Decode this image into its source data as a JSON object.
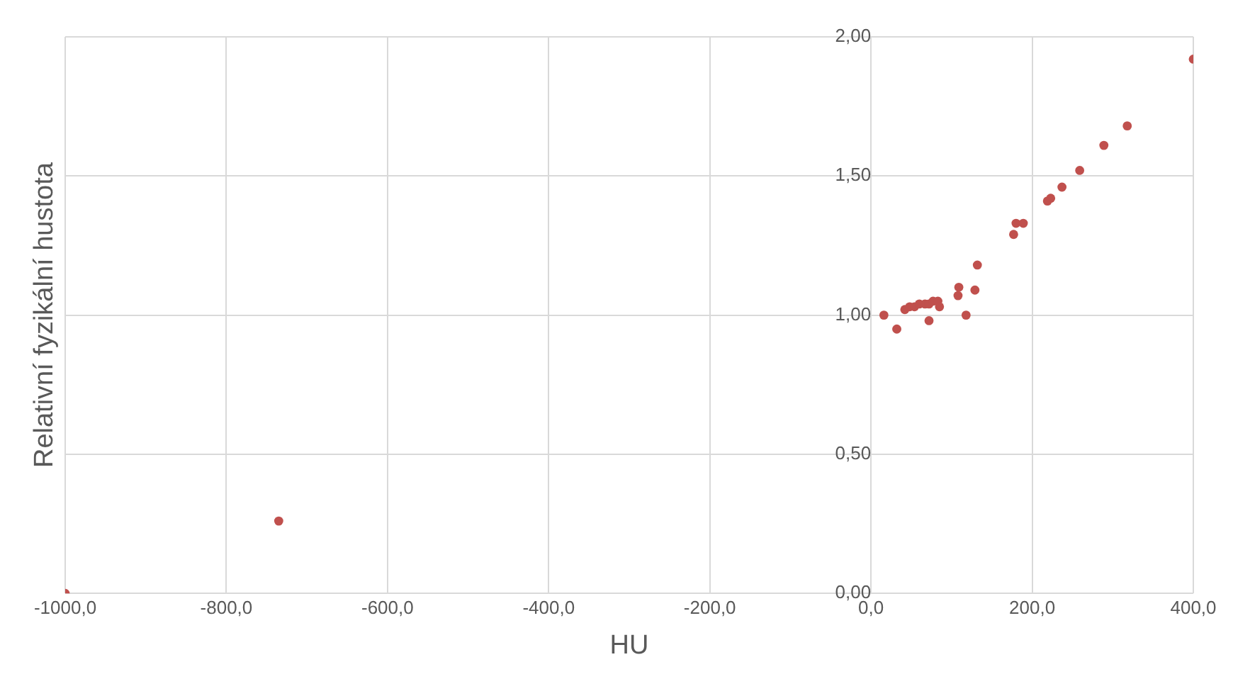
{
  "chart_data": {
    "type": "scatter",
    "xlabel": "HU",
    "ylabel": "Relativní fyzikální hustota",
    "x": [
      -1000,
      -735,
      16,
      32,
      42,
      48,
      54,
      60,
      67,
      72,
      72,
      77,
      83,
      85,
      108,
      109,
      118,
      129,
      132,
      177,
      180,
      189,
      219,
      223,
      237,
      259,
      289,
      318,
      400
    ],
    "series": [
      {
        "color": "#c0504d",
        "values": [
          0,
          0.26,
          1.0,
          0.95,
          1.02,
          1.03,
          1.03,
          1.04,
          1.04,
          0.98,
          1.04,
          1.05,
          1.05,
          1.03,
          1.07,
          1.1,
          1.0,
          1.09,
          1.18,
          1.29,
          1.33,
          1.33,
          1.41,
          1.42,
          1.46,
          1.52,
          1.61,
          1.68,
          1.92
        ]
      }
    ],
    "xlim": [
      -1000,
      400
    ],
    "xticks": [
      {
        "value": -1000,
        "label": "-1000,0"
      },
      {
        "value": -800,
        "label": "-800,0"
      },
      {
        "value": -600,
        "label": "-600,0"
      },
      {
        "value": -400,
        "label": "-400,0"
      },
      {
        "value": -200,
        "label": "-200,0"
      },
      {
        "value": 0,
        "label": "0,0"
      },
      {
        "value": 200,
        "label": "200,0"
      },
      {
        "value": 400,
        "label": "400,0"
      }
    ],
    "ylim": [
      0,
      2
    ],
    "yticks": [
      {
        "value": 0,
        "label": "0,00"
      },
      {
        "value": 0.5,
        "label": "0,50"
      },
      {
        "value": 1,
        "label": "1,00"
      },
      {
        "value": 1.5,
        "label": "1,50"
      },
      {
        "value": 2,
        "label": "2,00"
      }
    ],
    "grid": true,
    "legend": false,
    "marker": "circle"
  }
}
